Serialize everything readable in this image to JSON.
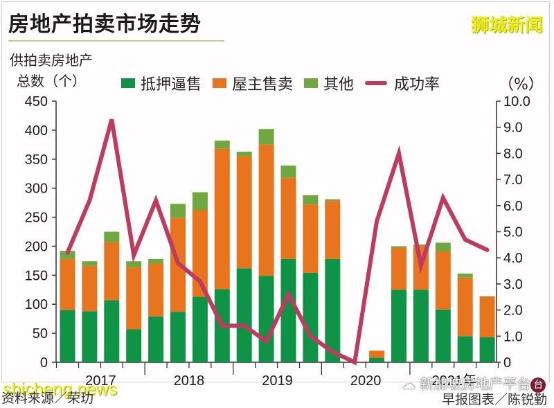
{
  "header": {
    "title": "房地产拍卖市场走势",
    "watermark_top": "狮城新闻"
  },
  "axis": {
    "left_label_line1": "供拍卖房地产",
    "left_label_line2": "总数（个）",
    "right_unit": "（%）"
  },
  "legend": {
    "items": [
      {
        "label": "抵押逼售",
        "color": "#0f9447",
        "type": "bar"
      },
      {
        "label": "屋主售卖",
        "color": "#e8751e",
        "type": "bar"
      },
      {
        "label": "其他",
        "color": "#6fa840",
        "type": "bar"
      },
      {
        "label": "成功率",
        "color": "#bf3a5f",
        "type": "line"
      }
    ]
  },
  "footer": {
    "source": "资料来源／荣玏",
    "credit": "早报图表／陈锐勤",
    "watermark_bottom": "shicheng.news",
    "watermark_wechat": "新加坡房地产平台"
  },
  "chart_data": {
    "type": "bar",
    "subtype": "stacked bar with line (dual axis)",
    "title": "房地产拍卖市场走势",
    "xlabel": "",
    "ylabel": "供拍卖房地产总数（个）",
    "y2label": "成功率（%）",
    "ylim": [
      0,
      450
    ],
    "y2lim": [
      0,
      10
    ],
    "yticks": [
      0,
      50,
      100,
      150,
      200,
      250,
      300,
      350,
      400,
      450
    ],
    "y2ticks": [
      "0",
      "1.0",
      "2.0",
      "3.0",
      "4.0",
      "5.0",
      "6.0",
      "7.0",
      "8.0",
      "9.0",
      "10.0"
    ],
    "year_labels": [
      "2017",
      "2018",
      "2019",
      "2020",
      "2021年"
    ],
    "categories": [
      "2017Q1",
      "2017Q2",
      "2017Q3",
      "2017Q4",
      "2018Q1",
      "2018Q2",
      "2018Q3",
      "2018Q4",
      "2019Q1",
      "2019Q2",
      "2019Q3",
      "2019Q4",
      "2020Q1",
      "2020Q2",
      "2020Q3",
      "2020Q4",
      "2021Q1",
      "2021Q2",
      "2021Q3",
      "2021Q4"
    ],
    "series": [
      {
        "name": "抵押逼售",
        "color": "#0f9447",
        "values": [
          90,
          88,
          107,
          57,
          79,
          87,
          113,
          126,
          162,
          149,
          178,
          154,
          178,
          0,
          8,
          125,
          125,
          91,
          45,
          43
        ]
      },
      {
        "name": "屋主售卖",
        "color": "#e8751e",
        "values": [
          88,
          78,
          100,
          107,
          91,
          162,
          149,
          242,
          193,
          226,
          140,
          118,
          100,
          0,
          12,
          72,
          75,
          100,
          101,
          70
        ]
      },
      {
        "name": "其他",
        "color": "#6fa840",
        "values": [
          14,
          8,
          18,
          10,
          8,
          24,
          31,
          14,
          8,
          27,
          21,
          16,
          3,
          0,
          0,
          3,
          3,
          15,
          7,
          1
        ]
      },
      {
        "name": "成功率",
        "type": "line",
        "axis": "right",
        "color": "#bf3a5f",
        "values": [
          4.2,
          6.2,
          9.3,
          4.1,
          6.2,
          3.8,
          3.1,
          1.4,
          1.4,
          0.8,
          2.6,
          1.0,
          0.4,
          0.0,
          5.4,
          8.0,
          3.7,
          6.3,
          4.7,
          4.3
        ]
      }
    ],
    "grid": false,
    "legend_position": "top"
  }
}
